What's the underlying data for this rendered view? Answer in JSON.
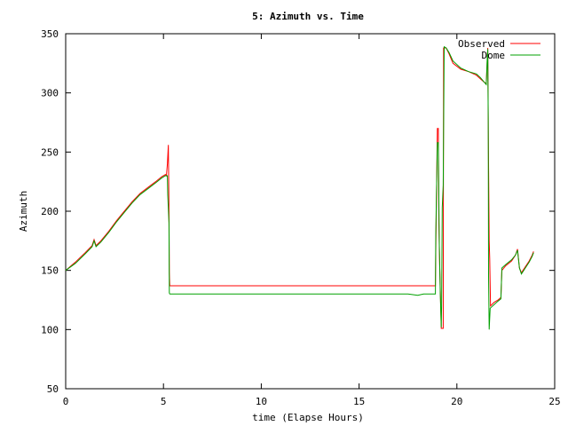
{
  "chart_data": {
    "type": "line",
    "title": "5: Azimuth vs. Time",
    "xlabel": "time (Elapse Hours)",
    "ylabel": "Azimuth",
    "xlim": [
      0,
      25
    ],
    "ylim": [
      50,
      350
    ],
    "xticks": [
      0,
      5,
      10,
      15,
      20,
      25
    ],
    "yticks": [
      50,
      100,
      150,
      200,
      250,
      300,
      350
    ],
    "grid": false,
    "legend_position": "top-right",
    "series": [
      {
        "name": "Observed",
        "color": "#ff0000",
        "points": [
          [
            0,
            150
          ],
          [
            0.5,
            157
          ],
          [
            1.0,
            165
          ],
          [
            1.35,
            171
          ],
          [
            1.45,
            176
          ],
          [
            1.55,
            171
          ],
          [
            1.8,
            175
          ],
          [
            2.2,
            183
          ],
          [
            2.6,
            192
          ],
          [
            3.0,
            200
          ],
          [
            3.4,
            208
          ],
          [
            3.8,
            215
          ],
          [
            4.2,
            220
          ],
          [
            4.6,
            225
          ],
          [
            4.9,
            229
          ],
          [
            5.1,
            231
          ],
          [
            5.15,
            230
          ],
          [
            5.2,
            240
          ],
          [
            5.25,
            256
          ],
          [
            5.28,
            200
          ],
          [
            5.3,
            148
          ],
          [
            5.32,
            137
          ],
          [
            10,
            137
          ],
          [
            15,
            137
          ],
          [
            18.9,
            137
          ],
          [
            18.92,
            165
          ],
          [
            19.0,
            270
          ],
          [
            19.05,
            270
          ],
          [
            19.08,
            190
          ],
          [
            19.12,
            155
          ],
          [
            19.2,
            101
          ],
          [
            19.3,
            101
          ],
          [
            19.32,
            338
          ],
          [
            19.45,
            338
          ],
          [
            19.6,
            333
          ],
          [
            19.8,
            325
          ],
          [
            20.2,
            320
          ],
          [
            20.6,
            318
          ],
          [
            21.0,
            315
          ],
          [
            21.2,
            312
          ],
          [
            21.4,
            309
          ],
          [
            21.5,
            308
          ],
          [
            21.58,
            338
          ],
          [
            21.6,
            282
          ],
          [
            21.62,
            240
          ],
          [
            21.65,
            175
          ],
          [
            21.68,
            160
          ],
          [
            21.72,
            120
          ],
          [
            21.9,
            123
          ],
          [
            22.1,
            125
          ],
          [
            22.25,
            127
          ],
          [
            22.3,
            150
          ],
          [
            22.5,
            154
          ],
          [
            22.8,
            158
          ],
          [
            23.0,
            163
          ],
          [
            23.1,
            168
          ],
          [
            23.2,
            152
          ],
          [
            23.3,
            148
          ],
          [
            23.5,
            153
          ],
          [
            23.7,
            158
          ],
          [
            23.85,
            163
          ],
          [
            23.92,
            166
          ]
        ]
      },
      {
        "name": "Dome",
        "color": "#00a000",
        "points": [
          [
            0,
            150
          ],
          [
            0.5,
            156
          ],
          [
            1.0,
            164
          ],
          [
            1.35,
            170
          ],
          [
            1.45,
            175
          ],
          [
            1.55,
            170
          ],
          [
            1.8,
            174
          ],
          [
            2.2,
            182
          ],
          [
            2.6,
            191
          ],
          [
            3.0,
            199
          ],
          [
            3.4,
            207
          ],
          [
            3.8,
            214
          ],
          [
            4.2,
            219
          ],
          [
            4.6,
            224
          ],
          [
            4.9,
            228
          ],
          [
            5.1,
            230
          ],
          [
            5.2,
            230
          ],
          [
            5.22,
            214
          ],
          [
            5.28,
            190
          ],
          [
            5.3,
            131
          ],
          [
            5.32,
            130
          ],
          [
            10,
            130
          ],
          [
            15,
            130
          ],
          [
            17.5,
            130
          ],
          [
            18.0,
            129
          ],
          [
            18.3,
            130
          ],
          [
            18.9,
            130
          ],
          [
            18.92,
            180
          ],
          [
            19.0,
            258
          ],
          [
            19.05,
            258
          ],
          [
            19.1,
            172
          ],
          [
            19.15,
            130
          ],
          [
            19.2,
            102
          ],
          [
            19.22,
            120
          ],
          [
            19.25,
            203
          ],
          [
            19.3,
            222
          ],
          [
            19.35,
            339
          ],
          [
            19.45,
            338
          ],
          [
            19.6,
            334
          ],
          [
            19.8,
            327
          ],
          [
            20.2,
            321
          ],
          [
            20.6,
            318
          ],
          [
            21.0,
            316
          ],
          [
            21.2,
            313
          ],
          [
            21.4,
            309
          ],
          [
            21.5,
            307
          ],
          [
            21.55,
            329
          ],
          [
            21.58,
            337
          ],
          [
            21.6,
            280
          ],
          [
            21.62,
            145
          ],
          [
            21.65,
            100
          ],
          [
            21.7,
            118
          ],
          [
            21.9,
            121
          ],
          [
            22.1,
            124
          ],
          [
            22.25,
            126
          ],
          [
            22.3,
            152
          ],
          [
            22.5,
            155
          ],
          [
            22.8,
            159
          ],
          [
            23.0,
            163
          ],
          [
            23.1,
            167
          ],
          [
            23.2,
            152
          ],
          [
            23.3,
            147
          ],
          [
            23.5,
            152
          ],
          [
            23.7,
            157
          ],
          [
            23.85,
            162
          ],
          [
            23.92,
            165
          ]
        ]
      }
    ]
  }
}
